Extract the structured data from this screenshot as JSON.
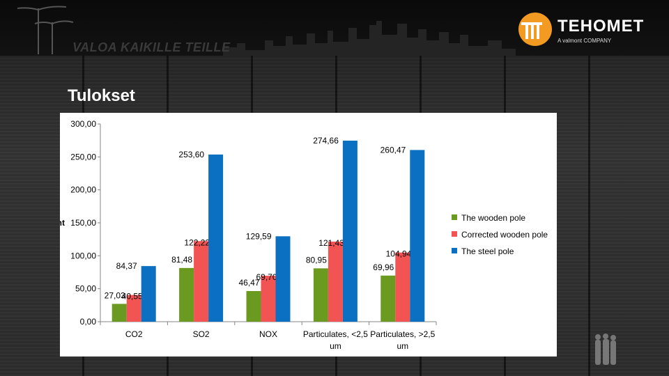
{
  "header": {
    "slogan": "VALOA KAIKILLE TEILLE",
    "logo_name": "TEHOMET",
    "logo_sub": "A valmont COMPANY"
  },
  "page": {
    "title": "Tulokset"
  },
  "colors": {
    "wooden": "#6a9a1f",
    "corrected": "#f25454",
    "steel": "#0b70c1"
  },
  "chart_data": {
    "type": "bar",
    "title": "",
    "xlabel": "",
    "ylabel": "Point",
    "ylim": [
      0,
      300
    ],
    "yticks": [
      "0,00",
      "50,00",
      "100,00",
      "150,00",
      "200,00",
      "250,00",
      "300,00"
    ],
    "categories": [
      "CO2",
      "SO2",
      "NOX",
      "Particulates, <2,5 um",
      "Particulates, >2,5 um"
    ],
    "category_lines": [
      [
        "CO2"
      ],
      [
        "SO2"
      ],
      [
        "NOX"
      ],
      [
        "Particulates, <2,5",
        "um"
      ],
      [
        "Particulates, >2,5",
        "um"
      ]
    ],
    "series": [
      {
        "name": "The wooden pole",
        "values": [
          27.03,
          81.48,
          46.47,
          80.95,
          69.96
        ],
        "labels": [
          "27,03",
          "81,48",
          "46,47",
          "80,95",
          "69,96"
        ]
      },
      {
        "name": "Corrected wooden pole",
        "values": [
          40.55,
          122.22,
          69.7,
          121.43,
          104.94
        ],
        "labels": [
          "40,55",
          "122,22",
          "69,70",
          "121,43",
          "104,94"
        ]
      },
      {
        "name": "The steel pole",
        "values": [
          84.37,
          253.6,
          129.59,
          274.66,
          260.47
        ],
        "labels": [
          "84,37",
          "253,60",
          "129,59",
          "274,66",
          "260,47"
        ]
      }
    ],
    "legend_position": "right",
    "grid": false
  }
}
